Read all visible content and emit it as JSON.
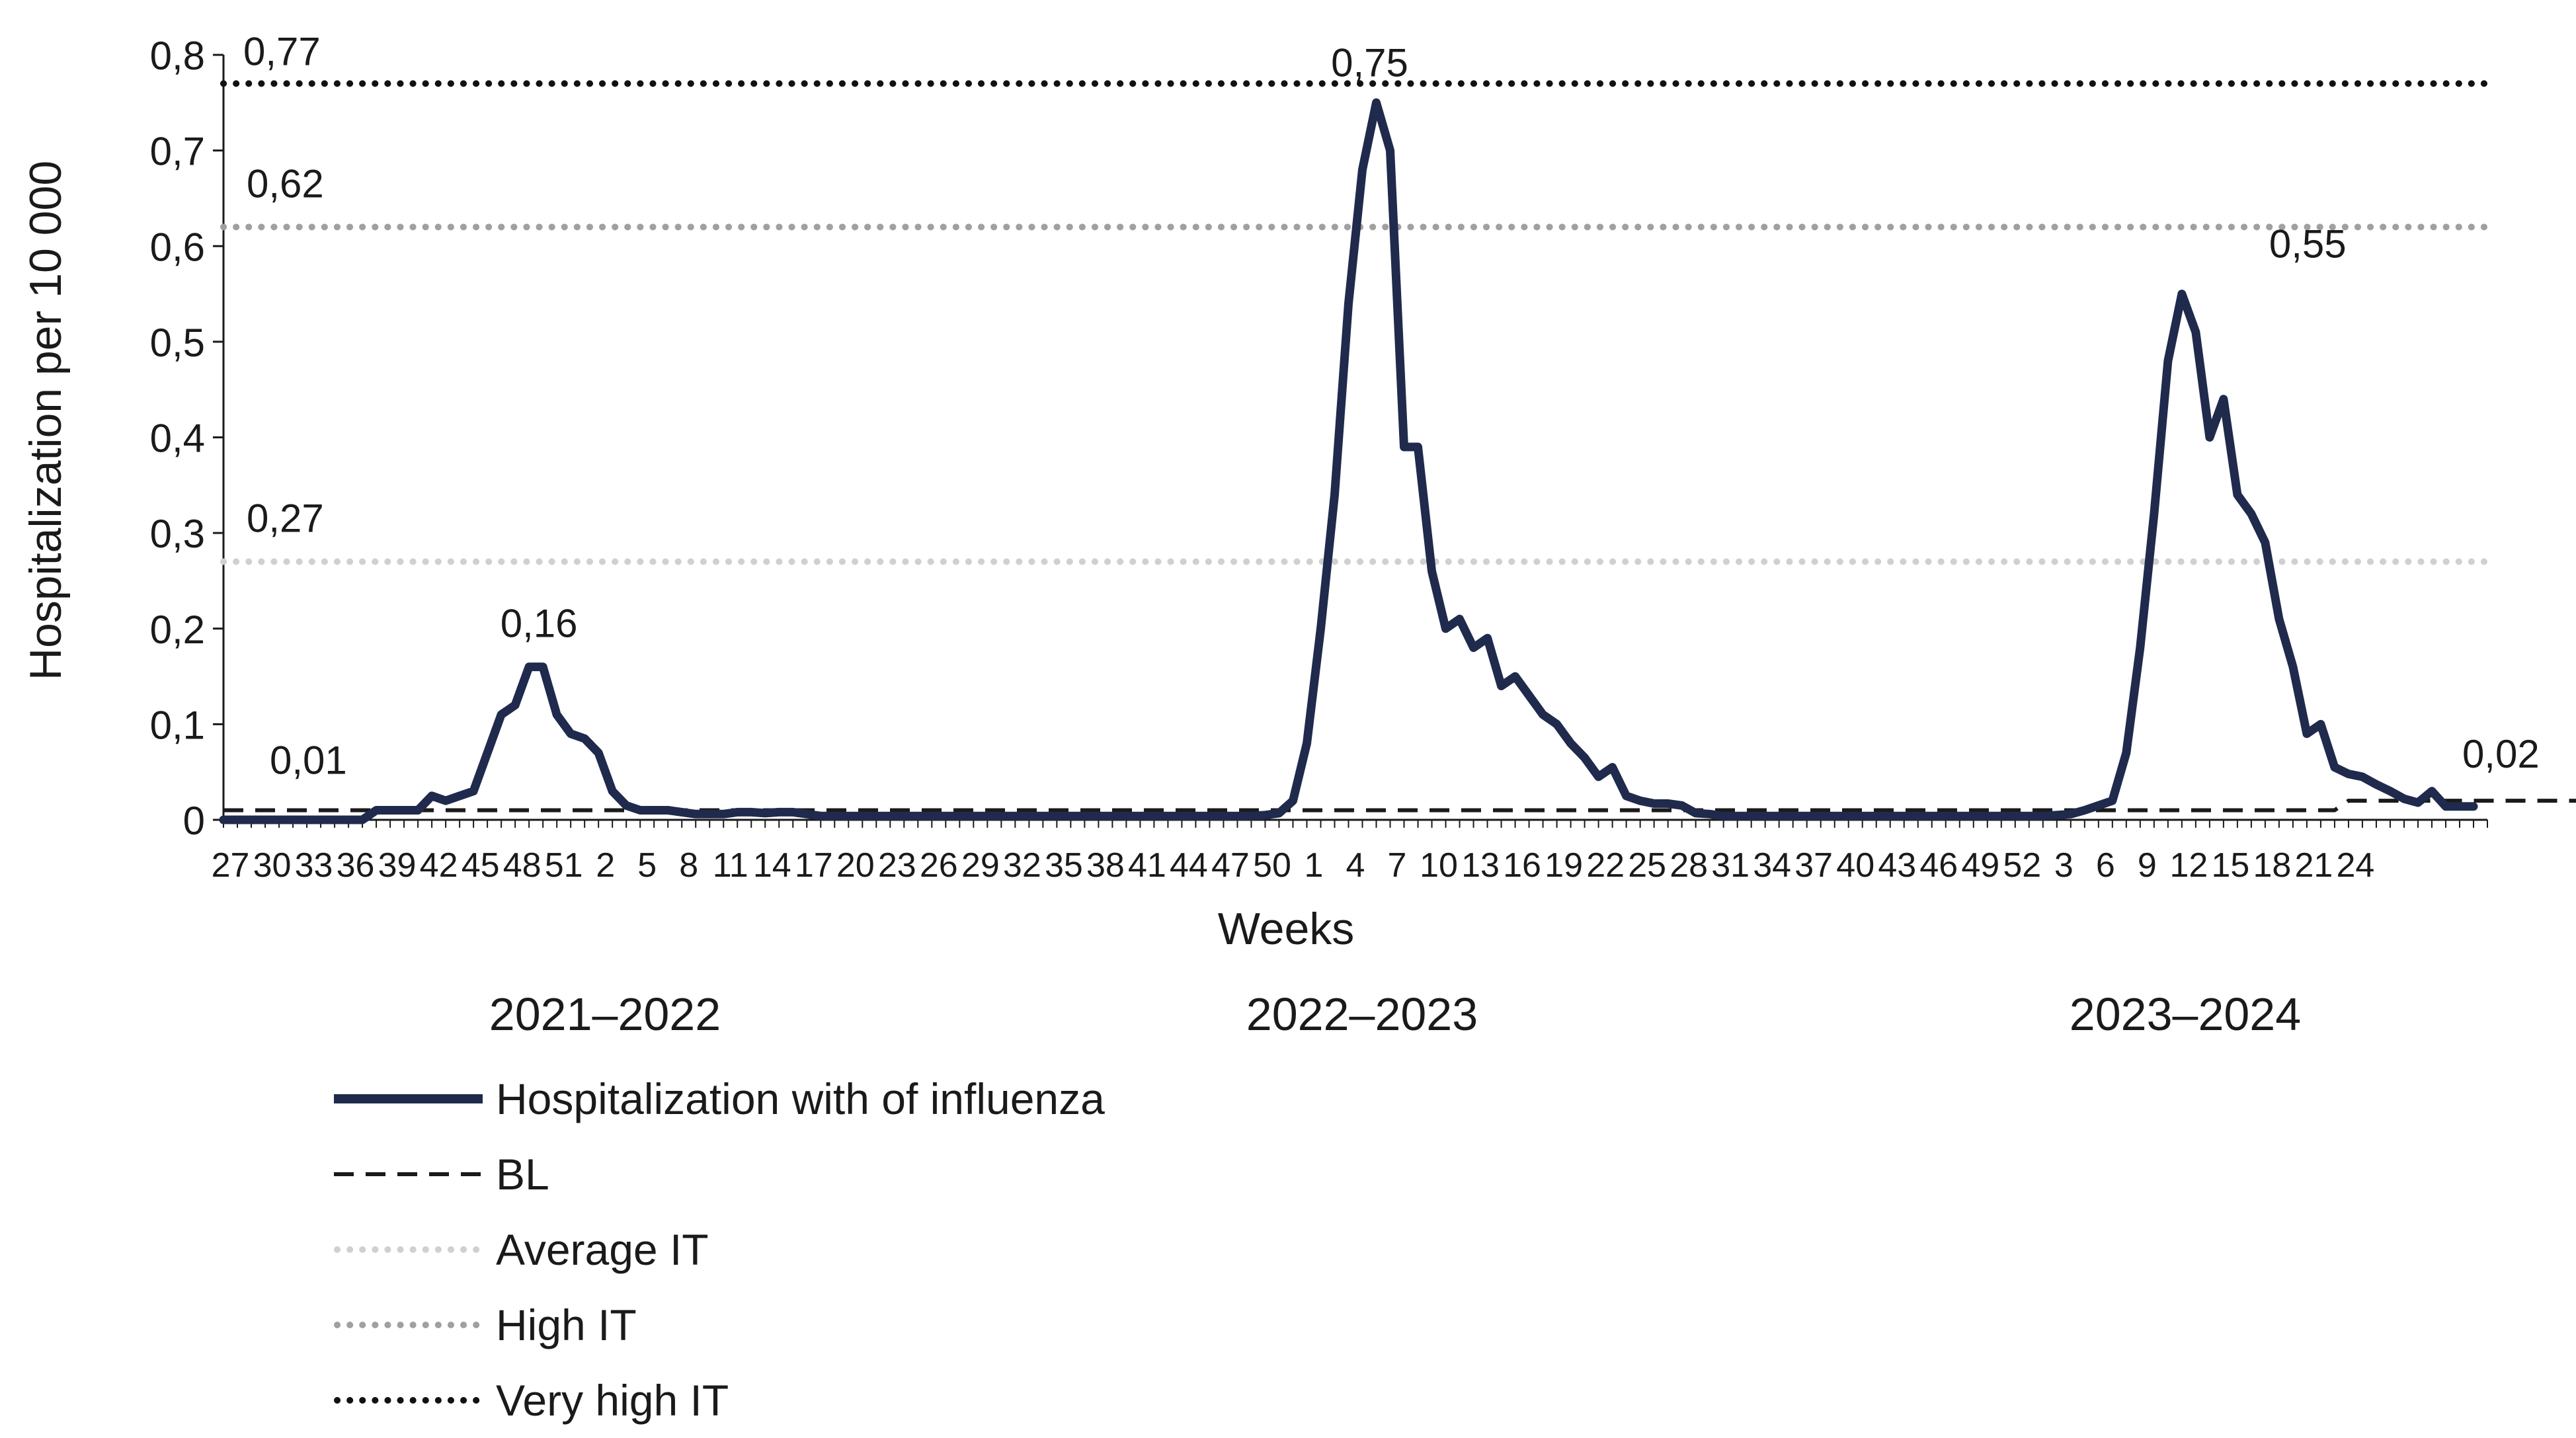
{
  "chart_data": {
    "type": "line",
    "ylabel": "Hospitalization per 10 000",
    "xlabel": "Weeks",
    "ylim": [
      0,
      0.8
    ],
    "y_ticks": [
      "0",
      "0,1",
      "0,2",
      "0,3",
      "0,4",
      "0,5",
      "0,6",
      "0,7",
      "0,8"
    ],
    "x_tick_labels": [
      "27",
      "30",
      "33",
      "36",
      "39",
      "42",
      "45",
      "48",
      "51",
      "2",
      "5",
      "8",
      "11",
      "14",
      "17",
      "20",
      "23",
      "26",
      "29",
      "32",
      "35",
      "38",
      "41",
      "44",
      "47",
      "50",
      "1",
      "4",
      "7",
      "10",
      "13",
      "16",
      "19",
      "22",
      "25",
      "28",
      "31",
      "34",
      "37",
      "40",
      "43",
      "46",
      "49",
      "52",
      "3",
      "6",
      "9",
      "12",
      "15",
      "18",
      "21",
      "24"
    ],
    "seasons": [
      "2021–2022",
      "2022–2023",
      "2023–2024"
    ],
    "colors": {
      "main": "#1f2a4d",
      "bl": "#1a1a1a",
      "average": "#d0d0d0",
      "high": "#a0a0a0",
      "very_high": "#111111"
    },
    "series": [
      {
        "name": "Hospitalization with of influenza",
        "values": [
          0,
          0,
          0,
          0,
          0,
          0,
          0,
          0,
          0,
          0,
          0,
          0.01,
          0.01,
          0.01,
          0.01,
          0.025,
          0.02,
          0.025,
          0.03,
          0.07,
          0.11,
          0.12,
          0.16,
          0.16,
          0.11,
          0.09,
          0.085,
          0.07,
          0.03,
          0.015,
          0.01,
          0.01,
          0.01,
          0.008,
          0.006,
          0.006,
          0.006,
          0.008,
          0.008,
          0.007,
          0.008,
          0.008,
          0.006,
          0.004,
          0.004,
          0.004,
          0.004,
          0.004,
          0.004,
          0.004,
          0.004,
          0.004,
          0.004,
          0.004,
          0.004,
          0.004,
          0.004,
          0.004,
          0.004,
          0.004,
          0.004,
          0.004,
          0.004,
          0.004,
          0.004,
          0.004,
          0.004,
          0.004,
          0.004,
          0.004,
          0.004,
          0.004,
          0.004,
          0.004,
          0.004,
          0.005,
          0.007,
          0.02,
          0.08,
          0.2,
          0.34,
          0.54,
          0.68,
          0.75,
          0.7,
          0.39,
          0.39,
          0.26,
          0.2,
          0.21,
          0.18,
          0.19,
          0.14,
          0.15,
          0.13,
          0.11,
          0.1,
          0.08,
          0.065,
          0.045,
          0.055,
          0.025,
          0.02,
          0.017,
          0.017,
          0.015,
          0.007,
          0.006,
          0.004,
          0.004,
          0.004,
          0.004,
          0.004,
          0.004,
          0.004,
          0.004,
          0.004,
          0.004,
          0.004,
          0.004,
          0.004,
          0.004,
          0.004,
          0.004,
          0.004,
          0.004,
          0.004,
          0.004,
          0.004,
          0.004,
          0.004,
          0.004,
          0.005,
          0.006,
          0.01,
          0.015,
          0.02,
          0.07,
          0.18,
          0.32,
          0.48,
          0.55,
          0.51,
          0.4,
          0.44,
          0.34,
          0.32,
          0.29,
          0.21,
          0.16,
          0.09,
          0.1,
          0.055,
          0.048,
          0.045,
          0.037,
          0.03,
          0.022,
          0.018,
          0.03,
          0.014,
          0.014,
          0.014
        ]
      },
      {
        "name": "BL",
        "values": [
          0.01,
          0.01,
          0.01,
          0.01,
          0.01,
          0.01,
          0.01,
          0.01,
          0.01,
          0.01,
          0.01,
          0.01,
          0.01,
          0.01,
          0.01,
          0.01,
          0.01,
          0.01,
          0.01,
          0.01,
          0.01,
          0.01,
          0.01,
          0.01,
          0.01,
          0.01,
          0.01,
          0.01,
          0.01,
          0.01,
          0.01,
          0.01,
          0.01,
          0.01,
          0.01,
          0.01,
          0.01,
          0.01,
          0.01,
          0.01,
          0.01,
          0.01,
          0.01,
          0.01,
          0.01,
          0.01,
          0.01,
          0.01,
          0.01,
          0.01,
          0.01,
          0.01,
          0.01,
          0.01,
          0.01,
          0.01,
          0.01,
          0.01,
          0.01,
          0.01,
          0.01,
          0.01,
          0.01,
          0.01,
          0.01,
          0.01,
          0.01,
          0.01,
          0.01,
          0.01,
          0.01,
          0.01,
          0.01,
          0.01,
          0.01,
          0.01,
          0.01,
          0.01,
          0.01,
          0.01,
          0.01,
          0.01,
          0.01,
          0.01,
          0.01,
          0.01,
          0.01,
          0.01,
          0.01,
          0.01,
          0.01,
          0.01,
          0.01,
          0.01,
          0.01,
          0.01,
          0.01,
          0.01,
          0.01,
          0.01,
          0.01,
          0.01,
          0.01,
          0.01,
          0.01,
          0.01,
          0.01,
          0.01,
          0.01,
          0.01,
          0.01,
          0.01,
          0.01,
          0.01,
          0.01,
          0.01,
          0.01,
          0.01,
          0.01,
          0.01,
          0.01,
          0.01,
          0.01,
          0.01,
          0.01,
          0.01,
          0.01,
          0.01,
          0.01,
          0.01,
          0.01,
          0.01,
          0.01,
          0.01,
          0.01,
          0.01,
          0.01,
          0.01,
          0.01,
          0.01,
          0.01,
          0.01,
          0.01,
          0.01,
          0.01,
          0.01,
          0.01,
          0.01,
          0.01,
          0.01,
          0.01,
          0.01,
          0.01,
          0.02,
          0.02,
          0.02,
          0.02,
          0.02,
          0.02,
          0.02,
          0.02,
          0.02,
          0.02,
          0.02,
          0.02,
          0.02,
          0.02,
          0.02,
          0.02,
          0.02,
          0.02,
          0.02,
          0.02,
          0.02,
          0.02
        ]
      },
      {
        "name": "Average IT",
        "constant": 0.27
      },
      {
        "name": "High IT",
        "constant": 0.62
      },
      {
        "name": "Very high IT",
        "constant": 0.77
      }
    ],
    "annotations": [
      {
        "text": "0,77",
        "x": 0,
        "y": 0.77
      },
      {
        "text": "0,62",
        "x": 0,
        "y": 0.62
      },
      {
        "text": "0,27",
        "x": 0,
        "y": 0.27
      },
      {
        "text": "0,01",
        "x": 0,
        "y": 0.01
      },
      {
        "text": "0,16",
        "x": 22,
        "y": 0.16
      },
      {
        "text": "0,75",
        "x": 83,
        "y": 0.75
      },
      {
        "text": "0,55",
        "x": 143,
        "y": 0.55
      },
      {
        "text": "0,02",
        "x": 155,
        "y": 0.02
      }
    ],
    "legend_position": "bottom-left",
    "grid": false
  }
}
